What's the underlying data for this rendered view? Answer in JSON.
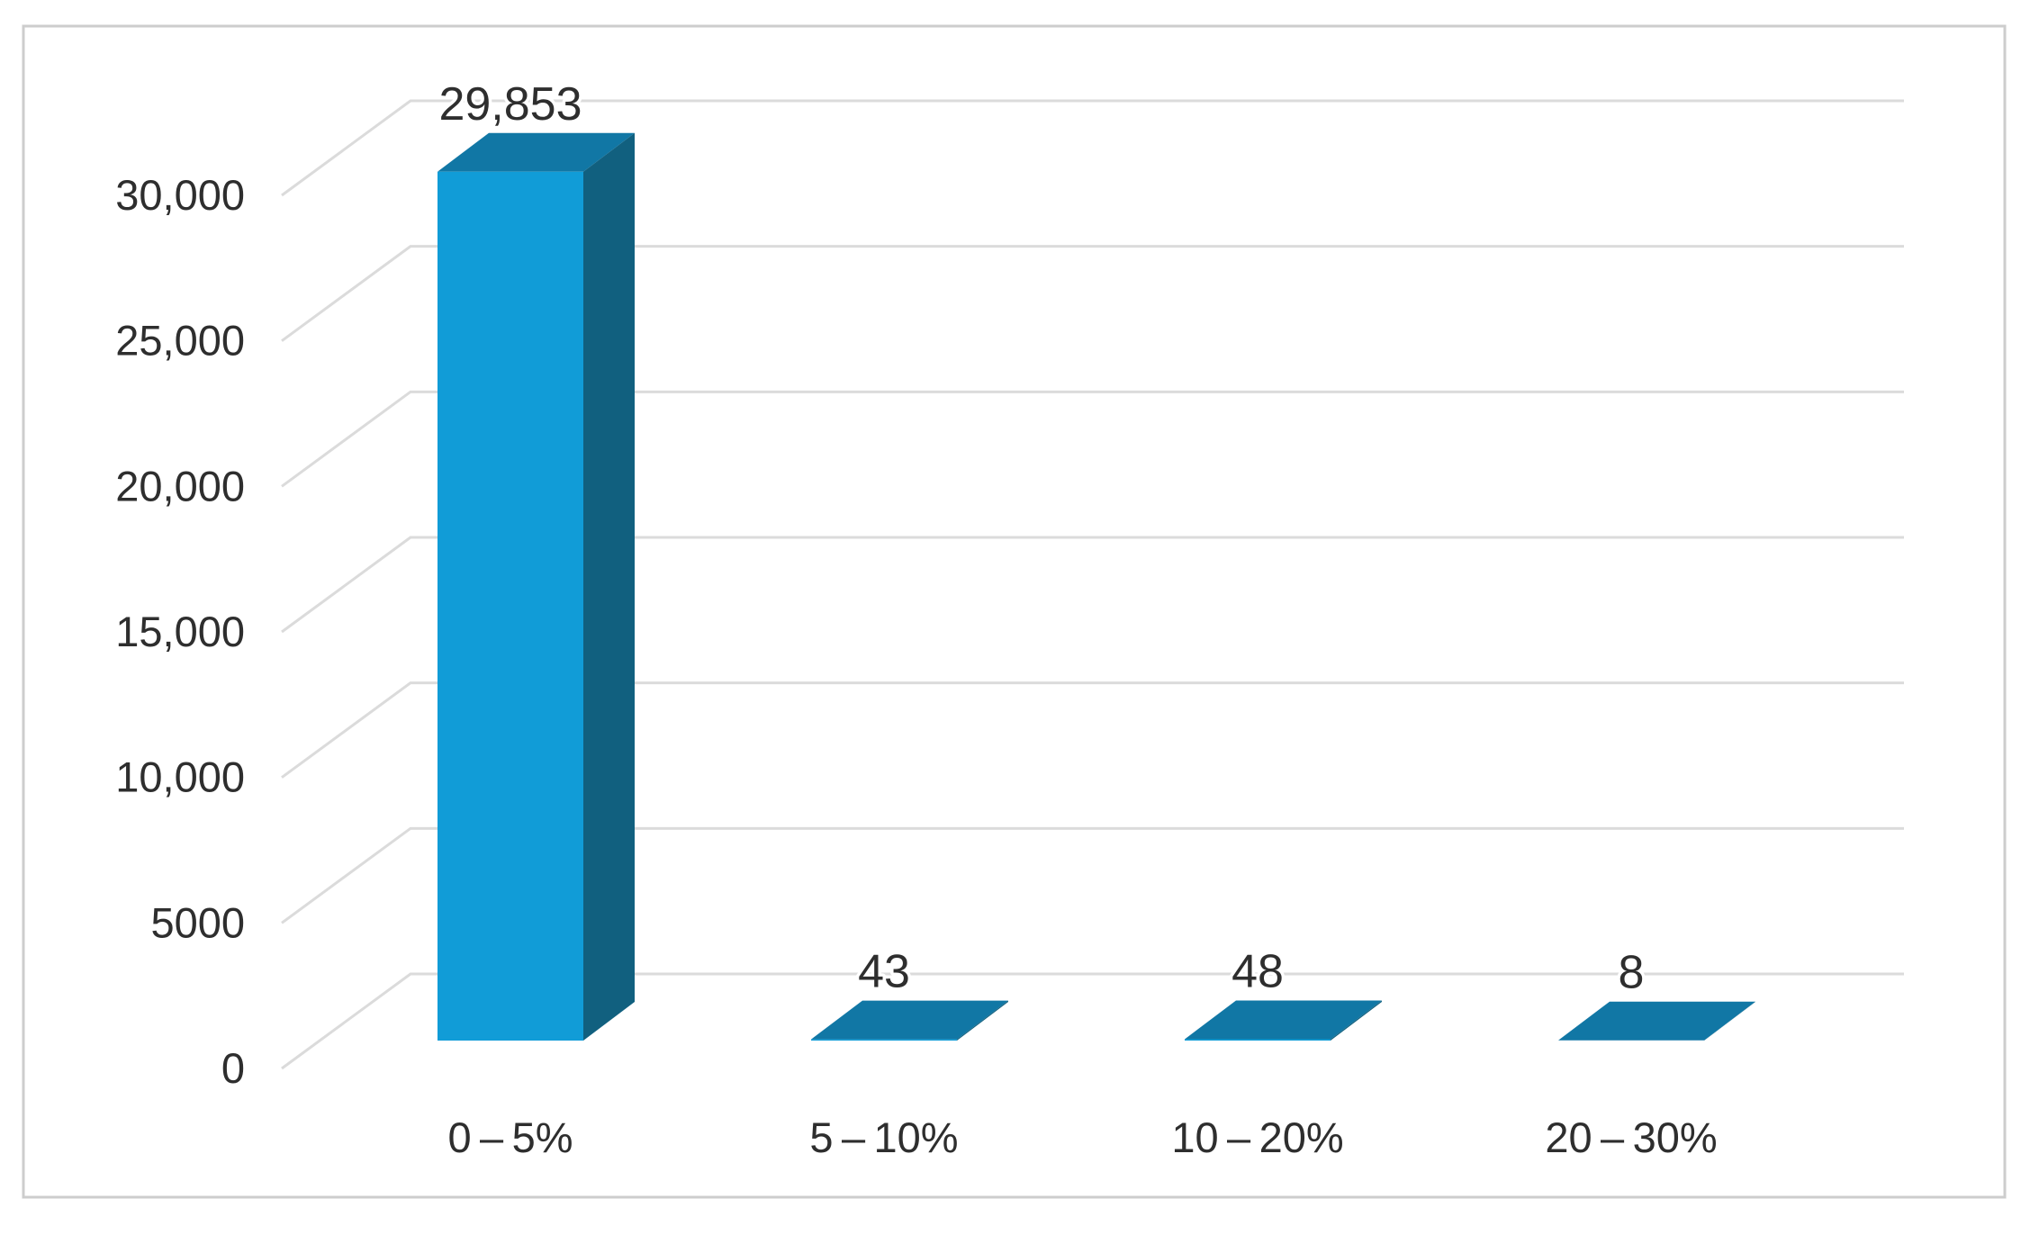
{
  "figure": {
    "background": "#FFFFFF",
    "border_color": "#CDCDCD"
  },
  "chart_data": {
    "type": "bar",
    "subtype": "3d-column-oblique",
    "title": "",
    "xlabel": "",
    "ylabel": "",
    "categories": [
      "0 – 5%",
      "5 – 10%",
      "10 – 20%",
      "20 – 30%"
    ],
    "values": [
      29853,
      43,
      48,
      8
    ],
    "data_labels": [
      "29,853",
      "43",
      "48",
      "8"
    ],
    "y_tick_values": [
      30000,
      25000,
      20000,
      15000,
      10000,
      5000,
      0
    ],
    "y_tick_labels": [
      "30,000",
      "25,000",
      "20,000",
      "15,000",
      "10,000",
      "5000",
      "0"
    ],
    "ylim": [
      0,
      30000
    ],
    "grid": true,
    "legend": "none",
    "colors": {
      "bar_front": "#119CD7",
      "bar_top": "#1177A5",
      "bar_side": "#11607F",
      "gridline": "#DBDBDB",
      "text": "#2E2E2E",
      "label_halo": "#FFFFFF"
    }
  }
}
